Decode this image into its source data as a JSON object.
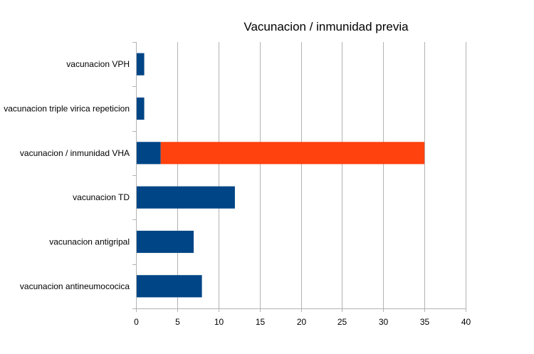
{
  "chart_data": {
    "type": "bar",
    "orientation": "horizontal",
    "stacked": true,
    "title": "Vacunacion / inmunidad previa",
    "categories": [
      "vacunacion VPH",
      "vacunacion triple virica repeticion",
      "vacunacion / inmunidad VHA",
      "vacunacion TD",
      "vacunacion antigripal",
      "vacunacion antineumococica"
    ],
    "series": [
      {
        "values": [
          1,
          1,
          3,
          12,
          7,
          8
        ],
        "color": "#004586"
      },
      {
        "values": [
          0,
          0,
          32,
          0,
          0,
          0
        ],
        "color": "#ff420e"
      }
    ],
    "xlim": [
      0,
      40
    ],
    "xticks": [
      0,
      5,
      10,
      15,
      20,
      25,
      30,
      35,
      40
    ],
    "grid": true,
    "legend": "none"
  }
}
